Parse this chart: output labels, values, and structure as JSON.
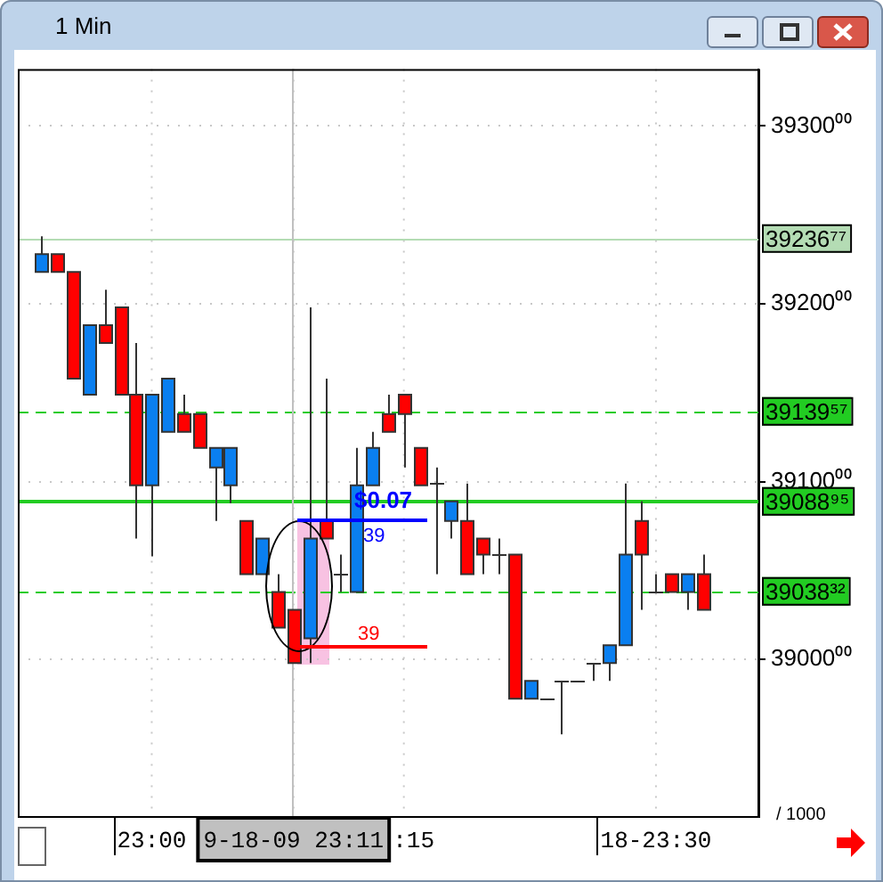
{
  "chart_data": {
    "type": "candlestick",
    "title": "1 Min",
    "categories": [
      null,
      null,
      null,
      null,
      null,
      null,
      null,
      null,
      "23:00",
      null,
      null,
      null,
      null,
      null,
      null,
      null,
      null,
      "9-18-09 23:11",
      null,
      null,
      null,
      null,
      null,
      null,
      ":15",
      null,
      null,
      null,
      null,
      null,
      null,
      null,
      null,
      null,
      null,
      null,
      null,
      null,
      null,
      null,
      "18-23:30",
      null,
      null,
      null,
      null,
      null,
      null
    ],
    "ohlc": [
      null,
      [
        39218,
        39238,
        39218,
        39228
      ],
      [
        39228,
        39228,
        39218,
        39218
      ],
      [
        39218,
        39218,
        39158,
        39158
      ],
      [
        39149,
        39188,
        39149,
        39188
      ],
      [
        39188,
        39208,
        39178,
        39178
      ],
      [
        39198,
        39198,
        39149,
        39149
      ],
      [
        39149,
        39178,
        39068,
        39098
      ],
      [
        39098,
        39149,
        39058,
        39149
      ],
      [
        39128,
        39158,
        39128,
        39158
      ],
      [
        39138,
        39149,
        39128,
        39128
      ],
      [
        39138,
        39138,
        39119,
        39119
      ],
      [
        39108,
        39119,
        39078,
        39119
      ],
      [
        39098,
        39119,
        39088,
        39119
      ],
      [
        39078,
        39078,
        39048,
        39048
      ],
      [
        39048,
        39068,
        39048,
        39068
      ],
      [
        39038,
        39048,
        39018,
        39018
      ],
      [
        39028,
        39028,
        38998,
        38998
      ],
      [
        39012,
        39198,
        38998,
        39068
      ],
      [
        39078,
        39158,
        39068,
        39068
      ],
      [
        39048,
        39059,
        39038,
        39048
      ],
      [
        39038,
        39119,
        39038,
        39098
      ],
      [
        39098,
        39128,
        39098,
        39119
      ],
      [
        39138,
        39149,
        39128,
        39128
      ],
      [
        39149,
        39149,
        39108,
        39138
      ],
      [
        39119,
        39119,
        39098,
        39098
      ],
      [
        39099,
        39108,
        39048,
        39099
      ],
      [
        39078,
        39089,
        39068,
        39089
      ],
      [
        39078,
        39099,
        39048,
        39048
      ],
      [
        39068,
        39068,
        39048,
        39059
      ],
      [
        39059,
        39068,
        39048,
        39059
      ],
      [
        39059,
        39059,
        38978,
        38978
      ],
      [
        38978,
        38988,
        38978,
        38988
      ],
      [
        38978,
        38978,
        38978,
        38978
      ],
      [
        38988,
        38988,
        38958,
        38988
      ],
      [
        38988,
        38988,
        38988,
        38988
      ],
      [
        38998,
        38998,
        38988,
        38998
      ],
      [
        38998,
        39008,
        38988,
        39008
      ],
      [
        39008,
        39099,
        39008,
        39059
      ],
      [
        39078,
        39089,
        39028,
        39059
      ],
      [
        39038,
        39048,
        39038,
        39038
      ],
      [
        39048,
        39048,
        39038,
        39038
      ],
      [
        39038,
        39048,
        39028,
        39048
      ],
      [
        39048,
        39059,
        39028,
        39028
      ],
      null,
      null,
      null
    ],
    "colors": [
      null,
      "#0a7ff0",
      "#ff0000",
      "#ff0000",
      "#0a7ff0",
      "#ff0000",
      "#ff0000",
      "#ff0000",
      "#0a7ff0",
      "#0a7ff0",
      "#ff0000",
      "#ff0000",
      "#0a7ff0",
      "#0a7ff0",
      "#ff0000",
      "#0a7ff0",
      "#ff0000",
      "#ff0000",
      "#0a7ff0",
      "#ff0000",
      "#333333",
      "#0a7ff0",
      "#0a7ff0",
      "#ff0000",
      "#ff0000",
      "#ff0000",
      "#333333",
      "#0a7ff0",
      "#ff0000",
      "#ff0000",
      "#333333",
      "#ff0000",
      "#0a7ff0",
      "#333333",
      "#333333",
      "#333333",
      "#333333",
      "#0a7ff0",
      "#0a7ff0",
      "#ff0000",
      "#333333",
      "#ff0000",
      "#0a7ff0",
      "#ff0000",
      null,
      null,
      null
    ],
    "ylim": [
      38912,
      39332
    ],
    "yticks": [
      {
        "value": 39000,
        "label": "39000⁰⁰"
      },
      {
        "value": 39100,
        "label": "39100⁰⁰"
      },
      {
        "value": 39200,
        "label": "39200⁰⁰"
      },
      {
        "value": 39300,
        "label": "39300⁰⁰"
      }
    ],
    "grid": true,
    "legend": false,
    "ref_lines": [
      {
        "axis": "y",
        "value": 39236.77,
        "label": "39236⁷⁷",
        "color": "#b4dcb4",
        "line_style": "solid"
      },
      {
        "axis": "y",
        "value": 39139.57,
        "label": "39139⁵⁷",
        "color": "#22cc22",
        "line_style": "dashed"
      },
      {
        "axis": "y",
        "value": 39088.95,
        "label": "39088⁹⁵",
        "color": "#22cc22",
        "line_style": "solid"
      },
      {
        "axis": "y",
        "value": 39038.32,
        "label": "39038³²",
        "color": "#22cc22",
        "line_style": "dashed"
      },
      {
        "axis": "x",
        "value": "9-18-09 23:11",
        "color": "#c0c0c0",
        "line_style": "solid"
      }
    ],
    "annotations": [
      "$0.07",
      "39",
      "39",
      "/ 1000"
    ]
  }
}
